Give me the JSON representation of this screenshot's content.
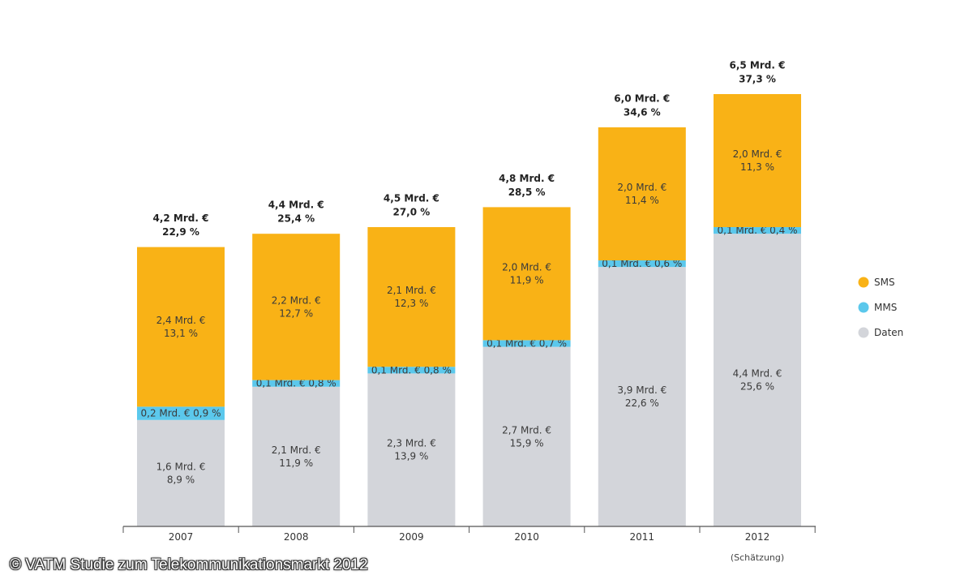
{
  "colors": {
    "sms": "#F9B216",
    "mms": "#5BC8EC",
    "daten": "#D3D5DA",
    "axis": "#555555"
  },
  "chart_data": {
    "type": "bar",
    "stacked": true,
    "categories": [
      "2007",
      "2008",
      "2009",
      "2010",
      "2011",
      "2012"
    ],
    "category_notes": [
      "",
      "",
      "",
      "",
      "",
      "(Schätzung)"
    ],
    "unit": "Mrd. €",
    "ylim": [
      0,
      7
    ],
    "series": [
      {
        "name": "Daten",
        "values": [
          1.6,
          2.1,
          2.3,
          2.7,
          3.9,
          4.4
        ],
        "labels": [
          "1,6 Mrd. €\n8,9 %",
          "2,1 Mrd. €\n11,9 %",
          "2,3 Mrd. €\n13,9 %",
          "2,7 Mrd. €\n15,9 %",
          "3,9 Mrd. €\n22,6 %",
          "4,4 Mrd. €\n25,6 %"
        ]
      },
      {
        "name": "MMS",
        "values": [
          0.2,
          0.1,
          0.1,
          0.1,
          0.1,
          0.1
        ],
        "labels": [
          "0,2 Mrd. € 0,9 %",
          "0,1 Mrd. €  0,8 %",
          "0,1 Mrd. €  0,8 %",
          "0,1 Mrd.  € 0,7 %",
          "0,1 Mrd. €  0,6 %",
          "0,1 Mrd. €  0,4 %"
        ]
      },
      {
        "name": "SMS",
        "values": [
          2.4,
          2.2,
          2.1,
          2.0,
          2.0,
          2.0
        ],
        "labels": [
          "2,4 Mrd. €\n13,1 %",
          "2,2 Mrd. €\n12,7 %",
          "2,1 Mrd. €\n12,3 %",
          "2,0 Mrd. €\n11,9 %",
          "2,0 Mrd. €\n11,4 %",
          "2,0 Mrd. €\n11,3 %"
        ]
      }
    ],
    "totals": [
      4.2,
      4.4,
      4.5,
      4.8,
      6.0,
      6.5
    ],
    "total_labels": [
      "4,2 Mrd. €\n22,9 %",
      "4,4 Mrd. €\n25,4 %",
      "4,5 Mrd. €\n27,0 %",
      "4,8 Mrd. €\n28,5 %",
      "6,0 Mrd. €\n34,6 %",
      "6,5 Mrd. €\n37,3 %"
    ],
    "legend": [
      {
        "name": "SMS",
        "color_key": "sms"
      },
      {
        "name": "MMS",
        "color_key": "mms"
      },
      {
        "name": "Daten",
        "color_key": "daten"
      }
    ],
    "legend_position": "right"
  },
  "copyright": "© VATM Studie zum Telekommunikationsmarkt 2012"
}
